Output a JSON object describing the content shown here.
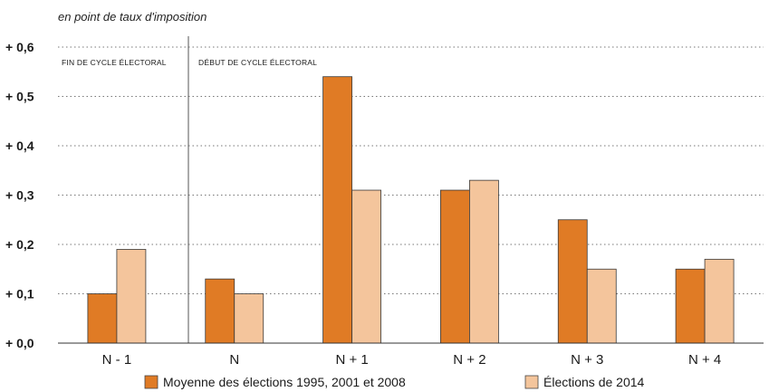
{
  "chart_data": {
    "type": "bar",
    "unit_label": "en point de taux d'imposition",
    "categories": [
      "N - 1",
      "N",
      "N + 1",
      "N + 2",
      "N + 3",
      "N + 4"
    ],
    "series": [
      {
        "name": "Moyenne des élections 1995, 2001 et 2008",
        "color": "#E07B25",
        "values": [
          0.1,
          0.13,
          0.54,
          0.31,
          0.25,
          0.15
        ]
      },
      {
        "name": "Élections de 2014",
        "color": "#F4C59C",
        "values": [
          0.19,
          0.1,
          0.31,
          0.33,
          0.15,
          0.17
        ]
      }
    ],
    "ylim": [
      0,
      0.6
    ],
    "yticks": [
      {
        "value": 0.0,
        "label": "+ 0,0"
      },
      {
        "value": 0.1,
        "label": "+ 0,1"
      },
      {
        "value": 0.2,
        "label": "+ 0,2"
      },
      {
        "value": 0.3,
        "label": "+ 0,3"
      },
      {
        "value": 0.4,
        "label": "+ 0,4"
      },
      {
        "value": 0.5,
        "label": "+ 0,5"
      },
      {
        "value": 0.6,
        "label": "+ 0,6"
      }
    ],
    "phase_labels": [
      "FIN DE CYCLE ÉLECTORAL",
      "DÉBUT DE CYCLE ÉLECTORAL"
    ],
    "grid": true,
    "legend_position": "bottom"
  }
}
